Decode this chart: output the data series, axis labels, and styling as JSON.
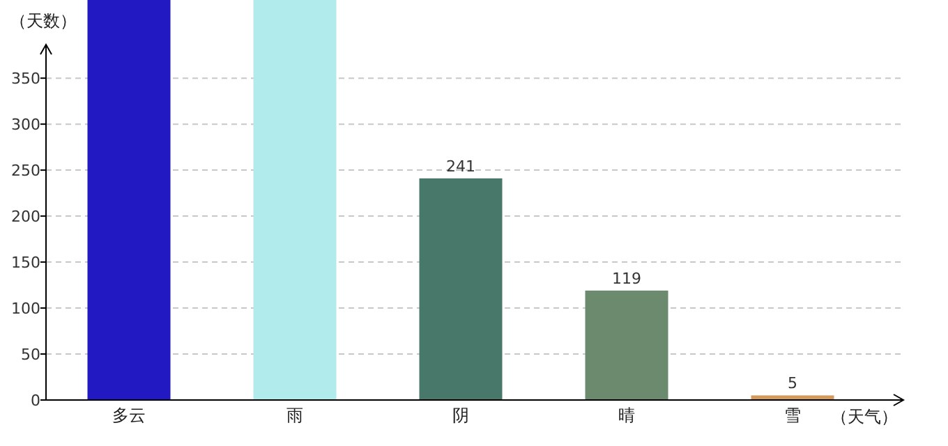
{
  "chart_data": {
    "type": "bar",
    "xlabel": "（天气）",
    "ylabel": "（天数）",
    "categories": [
      "多云",
      "雨",
      "阴",
      "晴",
      "雪"
    ],
    "values": [
      435,
      435,
      241,
      119,
      5
    ],
    "value_labels": [
      null,
      null,
      "241",
      "119",
      "5"
    ],
    "colors": [
      "#2219c2",
      "#b2ebeb",
      "#48786a",
      "#6b8a6e",
      "#d49a5c"
    ],
    "ylim": [
      0,
      435
    ],
    "yticks": [
      0,
      50,
      100,
      150,
      200,
      250,
      300,
      350
    ],
    "grid": "y"
  }
}
